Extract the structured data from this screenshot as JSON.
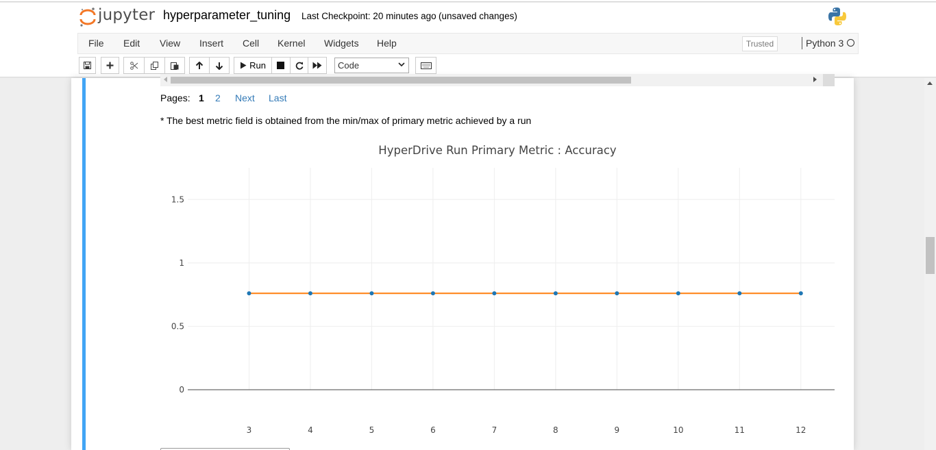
{
  "header": {
    "logo_text": "jupyter",
    "notebook_name": "hyperparameter_tuning",
    "checkpoint": "Last Checkpoint: 20 minutes ago",
    "unsaved": "(unsaved changes)"
  },
  "menu": {
    "items": [
      "File",
      "Edit",
      "View",
      "Insert",
      "Cell",
      "Kernel",
      "Widgets",
      "Help"
    ],
    "trusted": "Trusted",
    "kernel": "Python 3"
  },
  "toolbar": {
    "run_label": "Run",
    "cell_type": "Code",
    "icons": [
      "save-icon",
      "plus-icon",
      "cut-icon",
      "copy-icon",
      "paste-icon",
      "arrow-up-icon",
      "arrow-down-icon",
      "play-icon",
      "stop-icon",
      "restart-icon",
      "fast-forward-icon",
      "keyboard-icon"
    ]
  },
  "pager": {
    "label": "Pages:",
    "current": "1",
    "page2": "2",
    "next": "Next",
    "last": "Last"
  },
  "note": "* The best metric field is obtained from the min/max of primary metric achieved by a run",
  "colors": {
    "accent": "#42a5f5",
    "link": "#337ab7",
    "line": "#ff7f0e",
    "marker": "#1f77b4"
  },
  "chart_data": {
    "type": "line",
    "title": "HyperDrive Run Primary Metric : Accuracy",
    "x": [
      3,
      4,
      5,
      6,
      7,
      8,
      9,
      10,
      11,
      12
    ],
    "series": [
      {
        "values": [
          0.76,
          0.76,
          0.76,
          0.76,
          0.76,
          0.76,
          0.76,
          0.76,
          0.76,
          0.76
        ]
      }
    ],
    "xticks": [
      "3",
      "4",
      "5",
      "6",
      "7",
      "8",
      "9",
      "10",
      "11",
      "12"
    ],
    "yticks": [
      "0",
      "0.5",
      "1",
      "1.5"
    ],
    "ylim": [
      0,
      1.75
    ],
    "grid": true,
    "xlabel": "",
    "ylabel": ""
  }
}
